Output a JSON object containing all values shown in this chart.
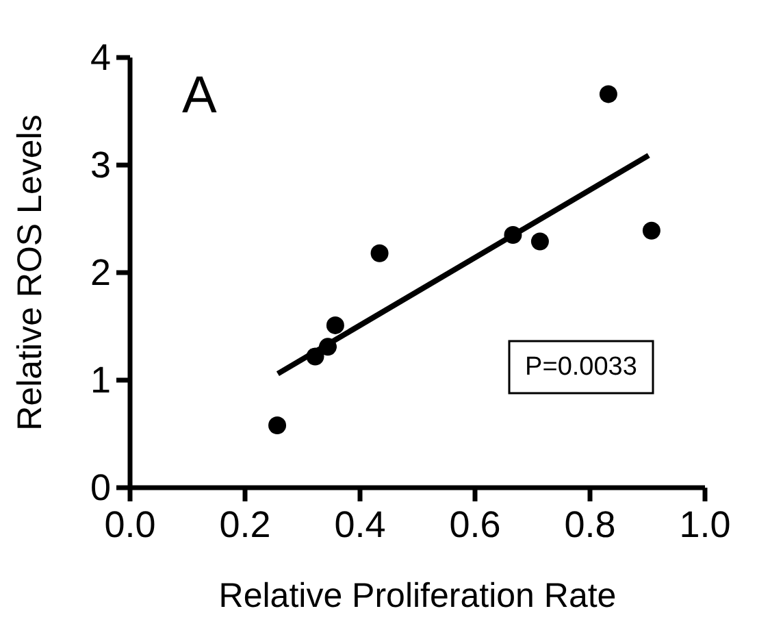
{
  "chart_data": {
    "type": "scatter",
    "xlabel": "Relative Proliferation Rate",
    "ylabel": "Relative ROS Levels",
    "annotations": [
      "A",
      "P=0.0033"
    ],
    "series": [
      {
        "color": "#000000",
        "marker": "circle",
        "x": [
          0.256,
          0.322,
          0.344,
          0.357,
          0.434,
          0.666,
          0.713,
          0.832,
          0.907
        ],
        "values": [
          0.58,
          1.22,
          1.31,
          1.51,
          2.18,
          2.35,
          2.29,
          3.66,
          2.39
        ]
      },
      {
        "type": "line",
        "color": "#000000",
        "x": [
          0.257,
          0.902
        ],
        "values": [
          1.06,
          3.09
        ]
      }
    ],
    "xlim": [
      0,
      1
    ],
    "xticks": [
      {
        "value": 0,
        "label": "0.0"
      },
      0.2,
      0.4,
      0.6,
      0.8,
      {
        "value": 1,
        "label": "1.0"
      }
    ],
    "ylim": [
      0,
      4
    ],
    "yticks": [
      0,
      1,
      2,
      3,
      4
    ],
    "grid": false
  }
}
